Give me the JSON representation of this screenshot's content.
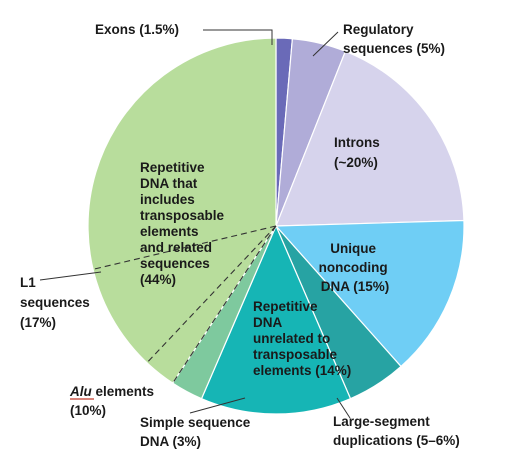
{
  "chart_data": {
    "type": "pie",
    "slices": [
      {
        "name": "Exons",
        "value": 1.5,
        "color": "#6a6ab8"
      },
      {
        "name": "Regulatory sequences",
        "value": 5,
        "color": "#b0acd8"
      },
      {
        "name": "Introns",
        "value": 20,
        "color": "#d6d3ec"
      },
      {
        "name": "Unique noncoding DNA",
        "value": 15,
        "color": "#6fcef5"
      },
      {
        "name": "Large-segment duplications",
        "value": 5.5,
        "color": "#27a3a3"
      },
      {
        "name": "Repetitive DNA unrelated to transposable elements",
        "value": 14,
        "color": "#16b5b5"
      },
      {
        "name": "Simple sequence DNA",
        "value": 3,
        "color": "#7ec99e"
      },
      {
        "name": "Repetitive DNA that includes transposable elements and related sequences",
        "value": 44,
        "color": "#b8dd9c"
      }
    ],
    "sub_slices": [
      {
        "name": "Simple sequence DNA",
        "value": 3
      },
      {
        "name": "Alu elements",
        "value": 10
      },
      {
        "name": "L1 sequences",
        "value": 17
      }
    ],
    "labels": {
      "exons": [
        "Exons (1.5%)"
      ],
      "regulatory": [
        "Regulatory",
        "sequences (5%)"
      ],
      "introns": [
        "Introns",
        "(~20%)"
      ],
      "unique": [
        "Unique",
        "noncoding",
        "DNA (15%)"
      ],
      "repetitive_unrelated": [
        "Repetitive",
        "DNA",
        "unrelated to",
        "transposable",
        "elements (14%)"
      ],
      "large_segment": [
        "Large-segment",
        "duplications (5–6%)"
      ],
      "simple": [
        "Simple sequence",
        "DNA (3%)"
      ],
      "alu": {
        "italic": "Alu",
        "rest": " elements",
        "line2": "(10%)"
      },
      "l1": [
        "L1",
        "sequences",
        "(17%)"
      ],
      "repetitive_transposable": [
        "Repetitive",
        "DNA that",
        "includes",
        "transposable",
        "elements",
        "and related",
        "sequences",
        "(44%)"
      ]
    },
    "colors": {
      "alu_underline": "#c0392b",
      "outline": "#ffffff",
      "leader": "#333333",
      "dashed": "#333333"
    }
  }
}
